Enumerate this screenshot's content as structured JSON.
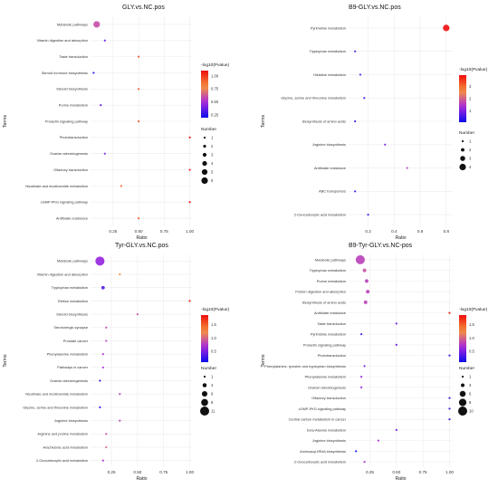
{
  "chart_data": [
    {
      "type": "scatter",
      "title": "GLY.vs.NC.pos",
      "xlabel": "Ratio",
      "ylabel": "Terms",
      "xlim": [
        0.03,
        1.03
      ],
      "xticks": [
        "0.25",
        "0.50",
        "0.75",
        "1.00"
      ],
      "xtick_values": [
        0.25,
        0.5,
        0.75,
        1.0
      ],
      "color_legend_title": "-log10(Pvalue)",
      "color_range": [
        0.2,
        1.1
      ],
      "color_ticks": [
        "0.25",
        "0.50",
        "0.75",
        "1.00"
      ],
      "color_tick_values": [
        0.25,
        0.5,
        0.75,
        1.0
      ],
      "size_legend_title": "Number",
      "size_legend_values": [
        "1",
        "2",
        "3",
        "4",
        "5",
        "6"
      ],
      "size_range": [
        1,
        6
      ],
      "terms": [
        "Metabolic pathways",
        "Vitamin digestion and absorption",
        "Taste transduction",
        "Steroid hormone biosynthesis",
        "Steroid biosynthesis",
        "Purine metabolism",
        "Prolactin signaling pathway",
        "Phototransduction",
        "Ovarian steroidogenesis",
        "Olfactory transduction",
        "Nicotinate and nicotinamide metabolism",
        "cGMP-PKG signaling pathway",
        "Antifolate resistance"
      ],
      "ratio": [
        0.09,
        0.17,
        0.5,
        0.06,
        0.5,
        0.13,
        0.5,
        1.0,
        0.17,
        1.0,
        0.33,
        1.0,
        0.5
      ],
      "neglog10p": [
        0.6,
        0.35,
        0.95,
        0.22,
        0.95,
        0.35,
        0.95,
        1.1,
        0.4,
        1.1,
        0.9,
        1.1,
        0.95
      ],
      "number": [
        6,
        1,
        1,
        1,
        1,
        1,
        1,
        1,
        1,
        1,
        1,
        1,
        1
      ]
    },
    {
      "type": "scatter",
      "title": "B9-GLY.vs.NC.pos",
      "xlabel": "Ratio",
      "ylabel": "Terms",
      "xlim": [
        0.05,
        0.85
      ],
      "xticks": [
        "0.2",
        "0.4",
        "0.6",
        "0.8"
      ],
      "xtick_values": [
        0.2,
        0.4,
        0.6,
        0.8
      ],
      "color_legend_title": "-log10(Pvalue)",
      "color_range": [
        0.1,
        3.9
      ],
      "color_ticks": [
        "1",
        "2",
        "3"
      ],
      "color_tick_values": [
        1,
        2,
        3
      ],
      "size_legend_title": "Number",
      "size_legend_values": [
        "1",
        "2",
        "3",
        "4"
      ],
      "size_range": [
        1,
        4
      ],
      "terms": [
        "Pyrimidine metabolism",
        "Tryptophan metabolism",
        "Histidine metabolism",
        "Glycine, serine and threonine metabolism",
        "Biosynthesis of amino acids",
        "Arginine biosynthesis",
        "Antifolate resistance",
        "ABC transporters",
        "2-Oxocarboxylic acid metabolism"
      ],
      "ratio": [
        0.8,
        0.1,
        0.14,
        0.17,
        0.1,
        0.33,
        0.5,
        0.1,
        0.2
      ],
      "neglog10p": [
        3.9,
        0.4,
        0.5,
        0.6,
        0.3,
        1.0,
        1.5,
        0.4,
        0.6
      ],
      "number": [
        4,
        1,
        1,
        1,
        1,
        1,
        1,
        1,
        1
      ]
    },
    {
      "type": "scatter",
      "title": "Tyr-GLY.vs.NC.pos",
      "xlabel": "Ratio",
      "ylabel": "Terms",
      "xlim": [
        0.05,
        1.03
      ],
      "xticks": [
        "0.25",
        "0.50",
        "0.75",
        "1.00"
      ],
      "xtick_values": [
        0.25,
        0.5,
        0.75,
        1.0
      ],
      "color_legend_title": "-log10(Pvalue)",
      "color_range": [
        0.1,
        1.85
      ],
      "color_ticks": [
        "0.5",
        "1.0",
        "1.5"
      ],
      "color_tick_values": [
        0.5,
        1.0,
        1.5
      ],
      "size_legend_title": "Number",
      "size_legend_values": [
        "1",
        "4",
        "6",
        "8",
        "11"
      ],
      "size_range": [
        1,
        11
      ],
      "terms": [
        "Metabolic pathways",
        "Vitamin digestion and absorption",
        "Tryptophan metabolism",
        "Retinol metabolism",
        "Steroid biosynthesis",
        "Serotonergic synapse",
        "Prostate cancer",
        "Phenylalanine metabolism",
        "Pathways in cancer",
        "Ovarian steroidogenesis",
        "Nicotinate and nicotinamide metabolism",
        "Glycine, serine and threonine metabolism",
        "Arginine biosynthesis",
        "Arginine and proline metabolism",
        "Arachidonic acid metabolism",
        "2-Oxocarboxylic acid metabolism"
      ],
      "ratio": [
        0.14,
        0.33,
        0.17,
        1.0,
        0.5,
        0.2,
        0.2,
        0.17,
        0.17,
        0.14,
        0.33,
        0.14,
        0.33,
        0.2,
        0.2,
        0.17
      ],
      "neglog10p": [
        0.6,
        1.3,
        0.35,
        1.8,
        0.9,
        0.8,
        0.8,
        0.7,
        0.7,
        0.2,
        0.8,
        0.2,
        0.8,
        0.9,
        1.0,
        0.7
      ],
      "number": [
        11,
        1,
        3,
        1,
        1,
        1,
        1,
        1,
        1,
        1,
        1,
        1,
        1,
        1,
        1,
        1
      ]
    },
    {
      "type": "scatter",
      "title": "B9-Tyr-GLY.vs.NC-pos",
      "xlabel": "Ratio",
      "ylabel": "Terms",
      "xlim": [
        0.05,
        1.03
      ],
      "xticks": [
        "0.25",
        "0.50",
        "0.75",
        "1.00"
      ],
      "xtick_values": [
        0.25,
        0.5,
        0.75,
        1.0
      ],
      "color_legend_title": "-log10(Pvalue)",
      "color_range": [
        0.1,
        1.85
      ],
      "color_ticks": [
        "0.5",
        "1.0",
        "1.5"
      ],
      "color_tick_values": [
        0.5,
        1.0,
        1.5
      ],
      "size_legend_title": "Number",
      "size_legend_values": [
        "1",
        "3",
        "6",
        "8",
        "10"
      ],
      "size_range": [
        1,
        10
      ],
      "terms": [
        "Metabolic pathways",
        "Tryptophan metabolism",
        "Purine metabolism",
        "Protein digestion and absorption",
        "Biosynthesis of amino acids",
        "Antifolate resistance",
        "Taste transduction",
        "Pyrimidine metabolism",
        "Prolactin signaling pathway",
        "Phototransduction",
        "Phenylalanine, tyrosine and tryptophan biosynthesis",
        "Phenylalanine metabolism",
        "Ovarian steroidogenesis",
        "Olfactory transduction",
        "cGMP-PKG signaling pathway",
        "Central carbon metabolism in cancer",
        "beta-Alanine metabolism",
        "Arginine biosynthesis",
        "Aminoacyl-tRNA biosynthesis",
        "2-Oxocarboxylic acid metabolism"
      ],
      "ratio": [
        0.16,
        0.2,
        0.22,
        0.23,
        0.21,
        1.0,
        0.5,
        0.17,
        0.5,
        1.0,
        0.2,
        0.17,
        0.17,
        1.0,
        1.0,
        1.0,
        0.5,
        0.33,
        0.12,
        0.2
      ],
      "neglog10p": [
        0.8,
        0.9,
        0.8,
        0.8,
        0.8,
        1.8,
        0.4,
        0.3,
        0.4,
        0.2,
        0.5,
        0.6,
        0.6,
        0.2,
        0.2,
        0.2,
        0.4,
        0.7,
        0.1,
        0.7
      ],
      "number": [
        10,
        3,
        3,
        3,
        3,
        1,
        1,
        1,
        1,
        1,
        1,
        1,
        1,
        1,
        1,
        1,
        1,
        1,
        1,
        1
      ]
    }
  ]
}
